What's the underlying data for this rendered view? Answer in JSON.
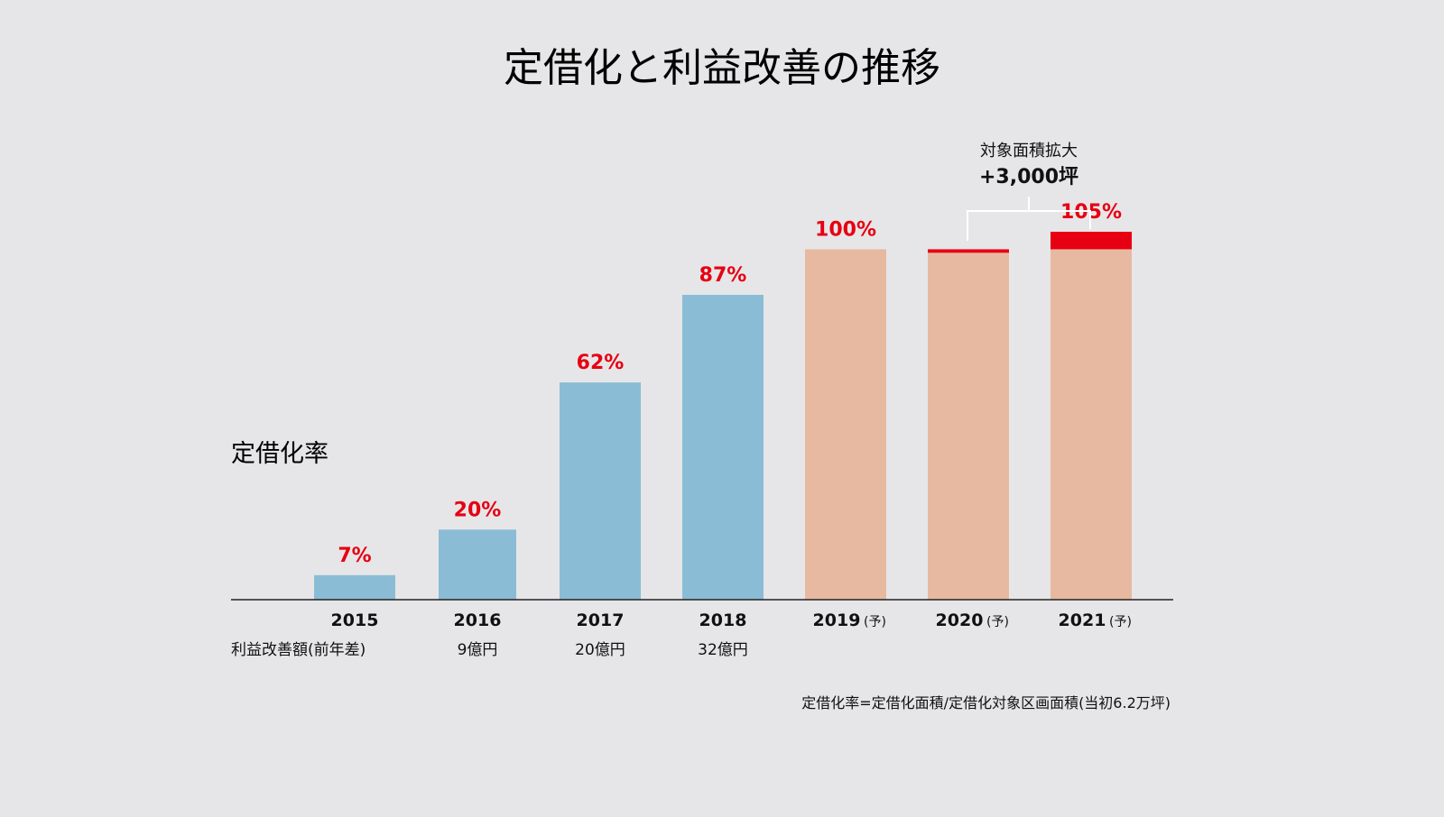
{
  "colors": {
    "background": "#e6e6e8",
    "actual_bar": "#8bbcd5",
    "forecast_bar": "#e7b9a0",
    "accent": "#e60012",
    "axis": "#222222"
  },
  "chart_data": {
    "type": "bar",
    "title": "定借化と利益改善の推移",
    "ylabel": "定借化率",
    "ylim": [
      0,
      105
    ],
    "categories": [
      "2015",
      "2016",
      "2017",
      "2018",
      "2019",
      "2020",
      "2021"
    ],
    "category_notes": [
      "",
      "",
      "",
      "",
      "(予)",
      "(予)",
      "(予)"
    ],
    "values": [
      7,
      20,
      62,
      87,
      100,
      100,
      105
    ],
    "value_labels": [
      "7%",
      "20%",
      "62%",
      "87%",
      "100%",
      "",
      "105%"
    ],
    "forecast": [
      false,
      false,
      false,
      false,
      true,
      true,
      true
    ],
    "base_share": [
      7,
      20,
      62,
      87,
      100,
      99,
      100
    ],
    "expansion_share": [
      0,
      0,
      0,
      0,
      0,
      1,
      5
    ],
    "profit_row_label": "利益改善額(前年差)",
    "profit_values": [
      "",
      "9億円",
      "20億円",
      "32億円",
      "",
      "",
      ""
    ],
    "annotation": {
      "line1": "対象面積拡大",
      "line2": "+3,000坪"
    },
    "footnote": "定借化率=定借化面積/定借化対象区画面積(当初6.2万坪)",
    "grid": false,
    "legend": "none"
  }
}
